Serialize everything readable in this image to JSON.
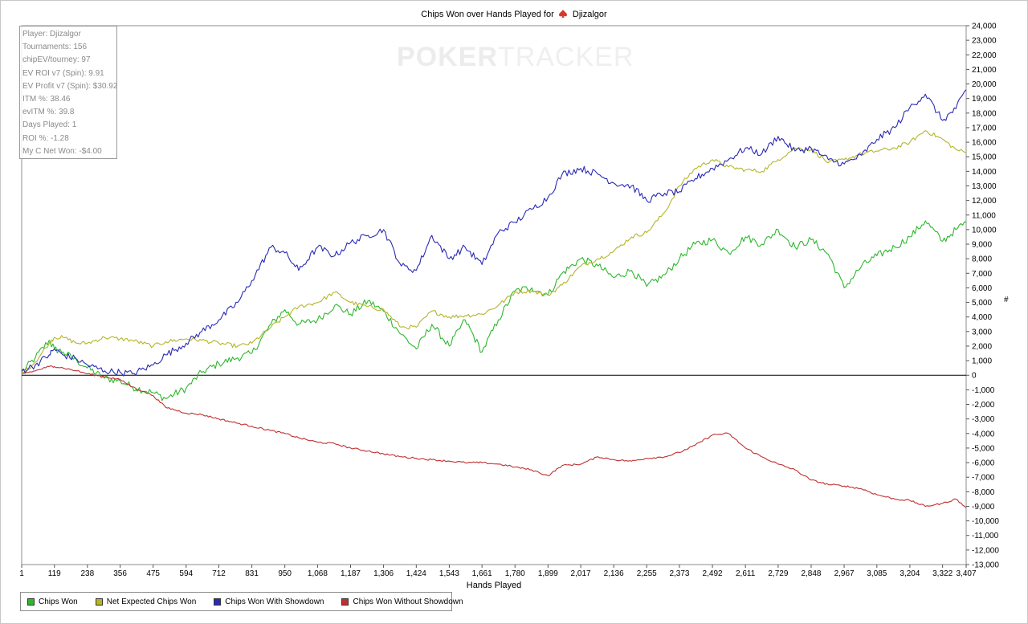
{
  "chart_data": {
    "type": "line",
    "title_prefix": "Chips Won over Hands Played for",
    "player_name": "Djizalgor",
    "xlabel": "Hands Played",
    "ylabel": "#",
    "xlim": [
      1,
      3407
    ],
    "ylim": [
      -13000,
      24000
    ],
    "x_ticks": [
      "1",
      "119",
      "238",
      "356",
      "475",
      "594",
      "712",
      "831",
      "950",
      "1,068",
      "1,187",
      "1,306",
      "1,424",
      "1,543",
      "1,661",
      "1,780",
      "1,899",
      "2,017",
      "2,136",
      "2,255",
      "2,373",
      "2,492",
      "2,611",
      "2,729",
      "2,848",
      "2,967",
      "3,085",
      "3,204",
      "3,322",
      "3,407"
    ],
    "y_ticks": [
      "24,000",
      "23,000",
      "22,000",
      "21,000",
      "20,000",
      "19,000",
      "18,000",
      "17,000",
      "16,000",
      "15,000",
      "14,000",
      "13,000",
      "12,000",
      "11,000",
      "10,000",
      "9,000",
      "8,000",
      "7,000",
      "6,000",
      "5,000",
      "4,000",
      "3,000",
      "2,000",
      "1,000",
      "0",
      "-1,000",
      "-2,000",
      "-3,000",
      "-4,000",
      "-5,000",
      "-6,000",
      "-7,000",
      "-8,000",
      "-9,000",
      "-10,000",
      "-11,000",
      "-12,000",
      "-13,000"
    ],
    "grid": false,
    "legend_position": "bottom-left",
    "x": [
      1,
      50,
      100,
      119,
      150,
      200,
      238,
      300,
      356,
      400,
      475,
      520,
      594,
      650,
      712,
      780,
      831,
      900,
      950,
      1000,
      1068,
      1130,
      1187,
      1250,
      1306,
      1370,
      1424,
      1480,
      1543,
      1600,
      1661,
      1720,
      1780,
      1840,
      1899,
      1950,
      2017,
      2080,
      2136,
      2200,
      2255,
      2320,
      2373,
      2430,
      2492,
      2550,
      2611,
      2670,
      2729,
      2790,
      2848,
      2910,
      2967,
      3030,
      3085,
      3150,
      3204,
      3260,
      3322,
      3370,
      3407
    ],
    "series": [
      {
        "name": "Chips Won",
        "color": "#2db82d",
        "values": [
          200,
          1200,
          2400,
          1800,
          1600,
          1000,
          500,
          -200,
          -400,
          -800,
          -1200,
          -1600,
          -900,
          200,
          800,
          1200,
          1500,
          3500,
          4500,
          3500,
          3800,
          4800,
          4200,
          5100,
          4400,
          2800,
          1800,
          3500,
          2000,
          3800,
          1600,
          3800,
          5800,
          6000,
          5500,
          7000,
          8000,
          7500,
          6700,
          7200,
          6100,
          6900,
          8000,
          9000,
          9300,
          8400,
          9500,
          9000,
          10000,
          8800,
          9300,
          8300,
          6000,
          7500,
          8200,
          8800,
          9500,
          10600,
          9200,
          10000,
          10500
        ]
      },
      {
        "name": "Net Expected Chips Won",
        "color": "#b5b52a",
        "values": [
          100,
          900,
          2200,
          2600,
          2600,
          2200,
          2200,
          2600,
          2500,
          2400,
          2000,
          2300,
          2500,
          2400,
          2200,
          2000,
          2200,
          3300,
          4000,
          4700,
          5000,
          5700,
          5000,
          4700,
          4500,
          3300,
          3300,
          4400,
          4000,
          4100,
          4200,
          4800,
          5700,
          5800,
          5500,
          6200,
          7500,
          8000,
          8500,
          9500,
          9800,
          11200,
          13000,
          14200,
          14800,
          14300,
          14100,
          14000,
          14800,
          15600,
          15500,
          14600,
          14800,
          15200,
          15400,
          15600,
          16000,
          16800,
          16200,
          15500,
          15300
        ]
      },
      {
        "name": "Chips Won With Showdown",
        "color": "#2a2ab4",
        "values": [
          300,
          700,
          1400,
          1800,
          1400,
          1100,
          700,
          300,
          200,
          100,
          700,
          1400,
          2200,
          3000,
          3800,
          5000,
          6500,
          8800,
          8400,
          7200,
          8800,
          8200,
          9100,
          9600,
          10000,
          7500,
          7200,
          9600,
          8000,
          8800,
          7600,
          9800,
          10500,
          11400,
          12200,
          13800,
          14200,
          13800,
          13200,
          13000,
          12000,
          12500,
          12600,
          13500,
          14200,
          14800,
          15600,
          15200,
          16400,
          15400,
          15600,
          14800,
          14500,
          15100,
          16200,
          17000,
          18400,
          19300,
          17500,
          18300,
          19600
        ]
      },
      {
        "name": "Chips Won Without Showdown",
        "color": "#c03030",
        "values": [
          100,
          300,
          600,
          600,
          500,
          300,
          100,
          -100,
          -300,
          -800,
          -1400,
          -2200,
          -2600,
          -2700,
          -3000,
          -3300,
          -3500,
          -3800,
          -4000,
          -4300,
          -4600,
          -4700,
          -5000,
          -5200,
          -5400,
          -5600,
          -5700,
          -5800,
          -5900,
          -6000,
          -6000,
          -6100,
          -6300,
          -6500,
          -6900,
          -6200,
          -6100,
          -5600,
          -5800,
          -5900,
          -5700,
          -5600,
          -5300,
          -4800,
          -4100,
          -4000,
          -5000,
          -5600,
          -6100,
          -6500,
          -7200,
          -7500,
          -7600,
          -7800,
          -8200,
          -8500,
          -8600,
          -9000,
          -8800,
          -8500,
          -9100
        ]
      }
    ]
  },
  "stats": [
    "Player: Djizalgor",
    "Tournaments: 156",
    "chipEV/tourney: 97",
    "EV ROI v7 (Spin): 9.91",
    "EV Profit v7 (Spin): $30.92",
    "ITM %: 38.46",
    "evITM %: 39.8",
    "Days Played: 1",
    "ROI %: -1.28",
    "My C Net Won: -$4.00"
  ],
  "watermark": {
    "bold": "POKER",
    "light": "TRACKER"
  }
}
